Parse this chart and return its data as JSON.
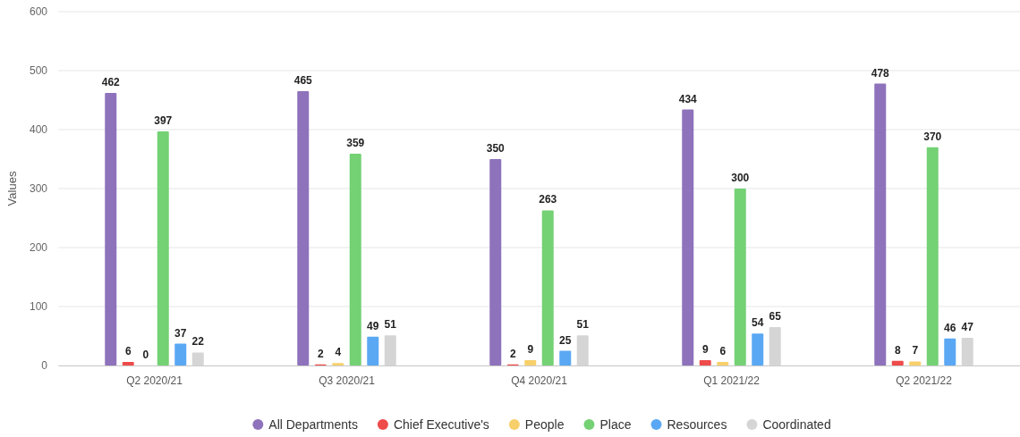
{
  "chart_data": {
    "type": "bar",
    "ylabel": "Values",
    "categories": [
      "Q2 2020/21",
      "Q3 2020/21",
      "Q4 2020/21",
      "Q1 2021/22",
      "Q2 2021/22"
    ],
    "series": [
      {
        "name": "All Departments",
        "color": "#8e72bb",
        "values": [
          462,
          465,
          350,
          434,
          478
        ]
      },
      {
        "name": "Chief Executive's",
        "color": "#ee4b4b",
        "values": [
          6,
          2,
          2,
          9,
          8
        ]
      },
      {
        "name": "People",
        "color": "#f7d06b",
        "values": [
          0,
          4,
          9,
          6,
          7
        ]
      },
      {
        "name": "Place",
        "color": "#74d174",
        "values": [
          397,
          359,
          263,
          300,
          370
        ]
      },
      {
        "name": "Resources",
        "color": "#5aa8f4",
        "values": [
          37,
          49,
          25,
          54,
          46
        ]
      },
      {
        "name": "Coordinated",
        "color": "#d5d5d5",
        "values": [
          22,
          51,
          51,
          65,
          47
        ]
      }
    ],
    "ylim": [
      0,
      600
    ],
    "yticks": [
      0,
      100,
      200,
      300,
      400,
      500,
      600
    ],
    "grid": "y",
    "legend": "bottom",
    "data_labels": true
  }
}
